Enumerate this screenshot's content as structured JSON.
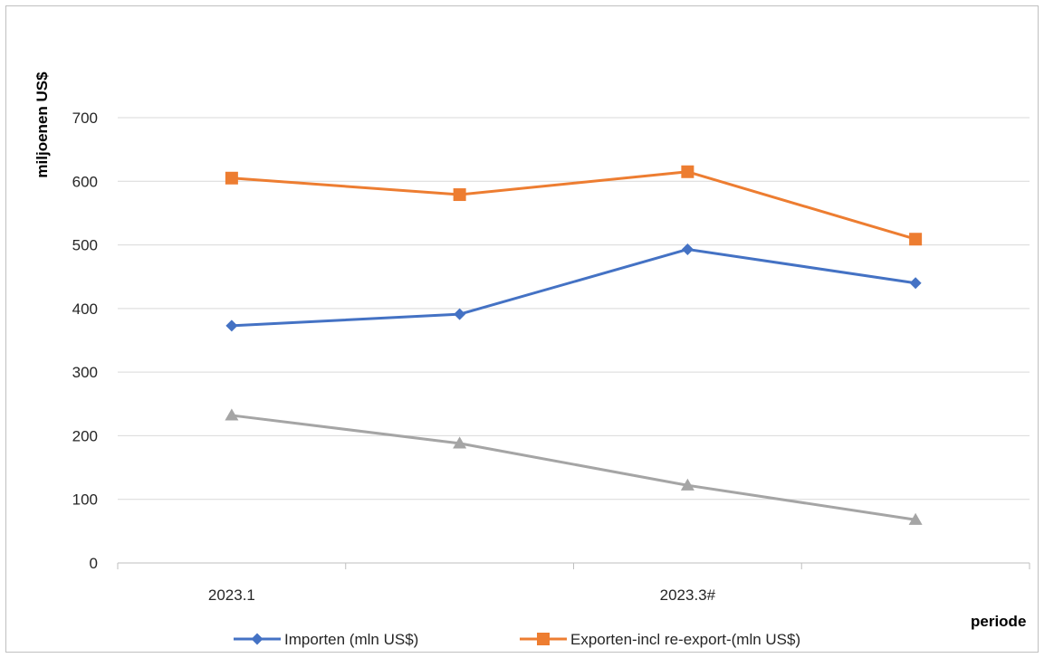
{
  "chart_data": {
    "type": "line",
    "title": "",
    "xlabel": "periode",
    "ylabel": "miljoenen US$",
    "ylim": [
      0,
      700
    ],
    "yticks": [
      0,
      100,
      200,
      300,
      400,
      500,
      600,
      700
    ],
    "categories": [
      "2023.1",
      "",
      "2023.3#",
      ""
    ],
    "grid": true,
    "legend_position": "bottom",
    "series": [
      {
        "name": "Importen (mln US$)",
        "values": [
          373,
          391,
          493,
          440
        ],
        "color": "#4472c4",
        "marker": "diamond",
        "in_legend": true
      },
      {
        "name": "Exporten-incl re-export-(mln US$)",
        "values": [
          605,
          579,
          615,
          509
        ],
        "color": "#ed7d31",
        "marker": "square",
        "in_legend": true
      },
      {
        "name": "",
        "values": [
          232,
          188,
          122,
          68
        ],
        "color": "#a5a5a5",
        "marker": "triangle",
        "in_legend": false
      }
    ]
  }
}
